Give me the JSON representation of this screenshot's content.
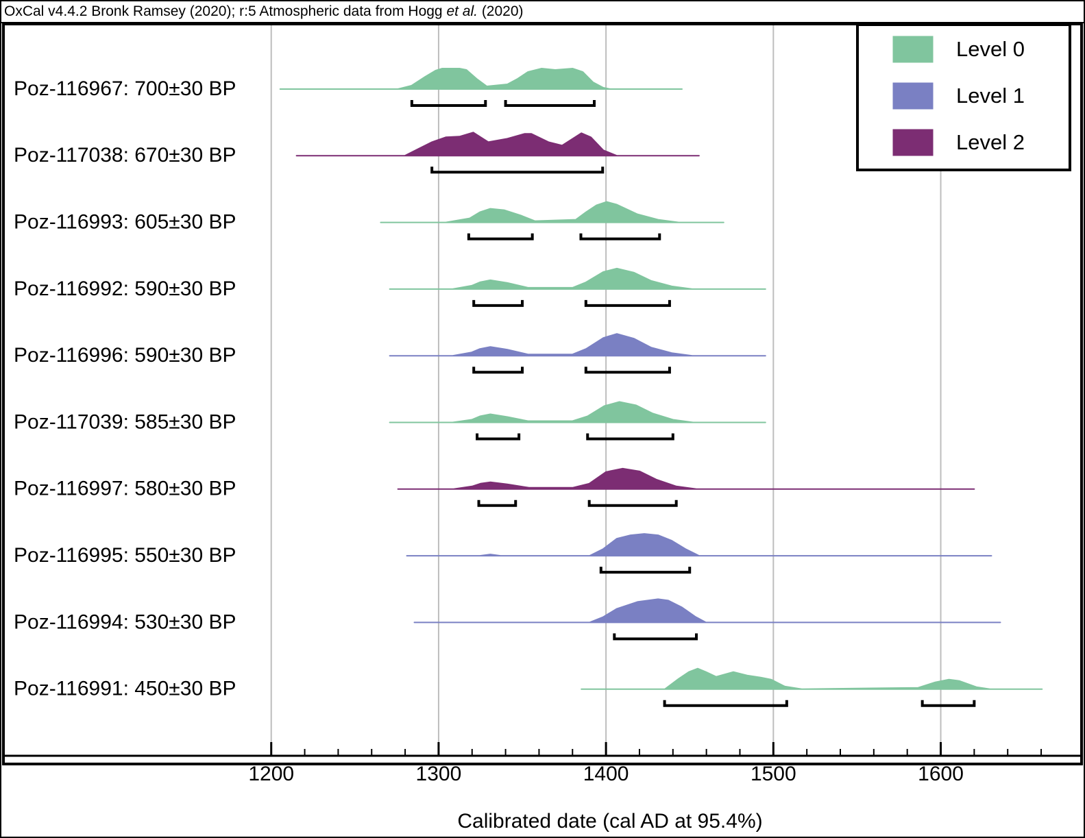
{
  "chart_data": {
    "type": "oxcal-multiplot",
    "source": {
      "before": "OxCal v4.4.2 Bronk Ramsey (2020); r:5 Atmospheric data from Hogg ",
      "italic": "et al.",
      "after": " (2020)"
    },
    "x_label": "Calibrated date (cal AD at 95.4%)",
    "xlim": [
      1040,
      1678
    ],
    "xticks": [
      1200,
      1300,
      1400,
      1500,
      1600
    ],
    "xminorticks": [
      1220,
      1240,
      1260,
      1280,
      1320,
      1340,
      1360,
      1380,
      1420,
      1440,
      1460,
      1480,
      1520,
      1540,
      1560,
      1580,
      1620,
      1640,
      1660
    ],
    "grid": true,
    "legend_position": "upper right",
    "levels": [
      {
        "name": "Level 0",
        "color": "#80c59e"
      },
      {
        "name": "Level 1",
        "color": "#7a80c3"
      },
      {
        "name": "Level 2",
        "color": "#7c2d73"
      }
    ],
    "samples": [
      {
        "name": "Poz-116967: 700±30 BP",
        "level": 0,
        "x": [
          1205.3,
          1275.7,
          1283.8,
          1292.0,
          1298.2,
          1302.2,
          1312.5,
          1316.6,
          1322.7,
          1328.8,
          1341.1,
          1347.2,
          1353.4,
          1361.6,
          1369.7,
          1380.0,
          1386.1,
          1392.2,
          1398.4,
          1402.5,
          1445.4
        ],
        "values": [
          0,
          0,
          5,
          18,
          27,
          30,
          30,
          28,
          15,
          4,
          7,
          15,
          25,
          30,
          28,
          30,
          25,
          10,
          2,
          0,
          0
        ],
        "ranges": [
          [
            1284,
            1328
          ],
          [
            1340,
            1393
          ]
        ]
      },
      {
        "name": "Poz-117038: 670±30 BP",
        "level": 2,
        "x": [
          1215.1,
          1279.8,
          1287.9,
          1296.1,
          1304.3,
          1312.5,
          1320.7,
          1329.7,
          1341.1,
          1351.3,
          1355.4,
          1365.6,
          1373.8,
          1385.3,
          1391.0,
          1398.4,
          1406.5,
          1455.6
        ],
        "values": [
          0,
          0,
          10,
          20,
          27,
          28,
          34,
          20,
          25,
          32,
          32,
          20,
          15,
          33,
          27,
          8,
          0,
          0
        ],
        "ranges": [
          [
            1296,
            1398
          ]
        ]
      },
      {
        "name": "Poz-116993: 605±30 BP",
        "level": 0,
        "x": [
          1265.4,
          1304.3,
          1318.6,
          1324.7,
          1330.9,
          1339.1,
          1349.3,
          1357.5,
          1382.0,
          1388.1,
          1394.3,
          1400.4,
          1406.5,
          1418.8,
          1431.1,
          1443.4,
          1470.3
        ],
        "values": [
          0,
          0,
          6,
          15,
          20,
          18,
          10,
          2,
          4,
          15,
          25,
          30,
          26,
          12,
          4,
          0,
          0
        ],
        "ranges": [
          [
            1318,
            1356
          ],
          [
            1385,
            1432
          ]
        ]
      },
      {
        "name": "Poz-116992: 590±30 BP",
        "level": 0,
        "x": [
          1270.8,
          1308.4,
          1319.8,
          1324.7,
          1330.9,
          1341.1,
          1353.4,
          1380.0,
          1388.1,
          1398.4,
          1406.5,
          1416.8,
          1427.0,
          1439.3,
          1451.5,
          1495.3
        ],
        "values": [
          0,
          0,
          5,
          10,
          13,
          9,
          2,
          2,
          10,
          25,
          30,
          24,
          12,
          4,
          0,
          0
        ],
        "ranges": [
          [
            1321,
            1350
          ],
          [
            1388,
            1438
          ]
        ]
      },
      {
        "name": "Poz-116996: 590±30 BP",
        "level": 1,
        "x": [
          1270.8,
          1308.4,
          1319.8,
          1324.7,
          1330.9,
          1341.1,
          1353.4,
          1380.0,
          1388.1,
          1398.4,
          1406.5,
          1416.8,
          1427.0,
          1439.3,
          1451.5,
          1495.3
        ],
        "values": [
          0,
          0,
          5,
          10,
          13,
          9,
          2,
          2,
          10,
          26,
          32,
          25,
          12,
          4,
          0,
          0
        ],
        "ranges": [
          [
            1321,
            1350
          ],
          [
            1388,
            1438
          ]
        ]
      },
      {
        "name": "Poz-117039: 585±30 BP",
        "level": 0,
        "x": [
          1270.8,
          1308.4,
          1319.8,
          1324.7,
          1330.9,
          1341.1,
          1353.4,
          1380.0,
          1389.0,
          1399.0,
          1408.0,
          1418.0,
          1428.0,
          1440.0,
          1452.0,
          1495.3
        ],
        "values": [
          0,
          0,
          4,
          9,
          12,
          8,
          2,
          2,
          9,
          24,
          30,
          25,
          13,
          4,
          0,
          0
        ],
        "ranges": [
          [
            1323,
            1348
          ],
          [
            1389,
            1440
          ]
        ]
      },
      {
        "name": "Poz-116997: 580±30 BP",
        "level": 2,
        "x": [
          1275.7,
          1309.0,
          1320.0,
          1325.0,
          1331.0,
          1341.0,
          1354.0,
          1380.0,
          1390.0,
          1400.0,
          1410.0,
          1420.0,
          1430.0,
          1442.0,
          1454.0,
          1620.0
        ],
        "values": [
          0,
          0,
          4,
          8,
          10,
          7,
          2,
          2,
          8,
          25,
          30,
          26,
          14,
          4,
          0,
          0
        ],
        "ranges": [
          [
            1324,
            1346
          ],
          [
            1390,
            1442
          ]
        ]
      },
      {
        "name": "Poz-116995: 550±30 BP",
        "level": 1,
        "x": [
          1281.0,
          1324.7,
          1330.9,
          1337.0,
          1390.2,
          1398.4,
          1406.5,
          1414.7,
          1422.9,
          1431.1,
          1439.3,
          1447.4,
          1455.6,
          1630.3
        ],
        "values": [
          0,
          0,
          2,
          0,
          0,
          10,
          25,
          30,
          32,
          30,
          22,
          10,
          0,
          0
        ],
        "ranges": [
          [
            1397,
            1450
          ]
        ]
      },
      {
        "name": "Poz-116994: 530±30 BP",
        "level": 1,
        "x": [
          1285.5,
          1390.2,
          1398.4,
          1406.5,
          1418.8,
          1431.1,
          1437.2,
          1445.4,
          1453.6,
          1459.7,
          1635.6
        ],
        "values": [
          0,
          0,
          8,
          20,
          30,
          34,
          32,
          22,
          8,
          0,
          0
        ],
        "ranges": [
          [
            1405,
            1454
          ]
        ]
      },
      {
        "name": "Poz-116991: 450±30 BP",
        "level": 0,
        "x": [
          1385.3,
          1435.2,
          1443.4,
          1449.5,
          1454.8,
          1459.7,
          1465.8,
          1476.1,
          1484.3,
          1492.4,
          1498.6,
          1506.7,
          1517.0,
          1549.7,
          1586.5,
          1596.7,
          1604.9,
          1611.0,
          1621.3,
          1629.4,
          1660.5
        ],
        "values": [
          0,
          0,
          15,
          25,
          30,
          25,
          18,
          25,
          20,
          17,
          14,
          4,
          0,
          1,
          2,
          10,
          14,
          12,
          3,
          0,
          0
        ],
        "ranges": [
          [
            1435,
            1508
          ],
          [
            1589,
            1620
          ]
        ]
      }
    ]
  }
}
